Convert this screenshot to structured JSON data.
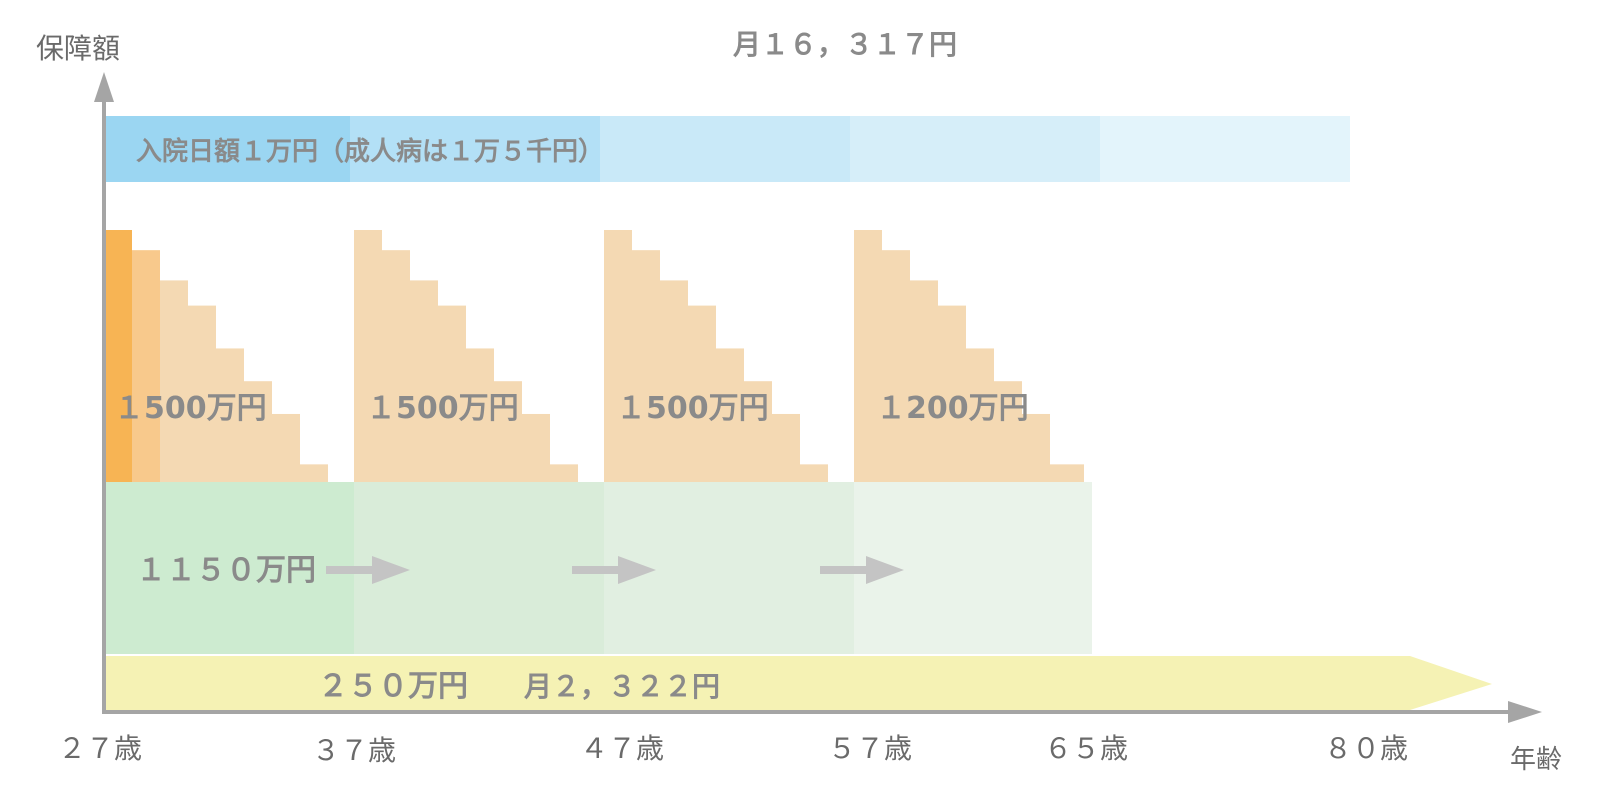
{
  "axis": {
    "y_label": "保障額",
    "x_label": "年齢",
    "age_ticks": [
      "２７歳",
      "３７歳",
      "４７歳",
      "５７歳",
      "６５歳",
      "８０歳"
    ]
  },
  "premium_top": "月１６，３１７円",
  "hospital_band": {
    "label": "入院日額１万円（成人病は１万５千円）",
    "colors": [
      "#9bd6f2",
      "#b3e0f6",
      "#c9e9f8",
      "#d6eef9",
      "#e3f4fb"
    ]
  },
  "term_blocks": {
    "labels": [
      "１500万円",
      "１500万円",
      "１500万円",
      "１200万円"
    ],
    "relative_levels": [
      1.0,
      0.92,
      0.8,
      0.7,
      0.53,
      0.4,
      0.27,
      0.07
    ],
    "colors": {
      "current": "#f7b454",
      "second": "#f8c98c",
      "future": "#f4d9b3"
    }
  },
  "middle_band": {
    "label": "１１５０万円",
    "colors": [
      "#cdebd0",
      "#d9ecd9",
      "#e1efe1",
      "#eaf3ea"
    ],
    "arrow_color": "#c4c4c4"
  },
  "bottom_band": {
    "label": "２５０万円",
    "premium": "月２，３２２円",
    "color": "#f5f2b4"
  }
}
